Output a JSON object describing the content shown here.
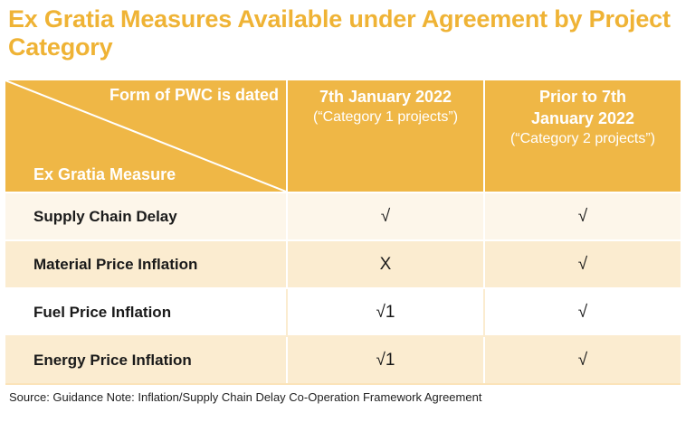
{
  "title": "Ex Gratia Measures Available under Agreement by Project Category",
  "colors": {
    "accent": "#efb335",
    "header_bg": "#efb746",
    "row_tint": "#fbecd0"
  },
  "table": {
    "corner_top_label": "Form of PWC is dated",
    "corner_bottom_label": "Ex Gratia Measure",
    "columns": [
      {
        "heading": "7th January 2022",
        "subheading": "(“Category 1 projects”)"
      },
      {
        "heading": "Prior to 7th January 2022",
        "subheading": "(“Category 2 projects”)"
      }
    ],
    "rows": [
      {
        "measure": "Supply Chain Delay",
        "cat1": "√",
        "cat2": "√"
      },
      {
        "measure": "Material Price Inflation",
        "cat1": "X",
        "cat2": "√"
      },
      {
        "measure": "Fuel Price Inflation",
        "cat1": "√1",
        "cat2": "√"
      },
      {
        "measure": "Energy Price Inflation",
        "cat1": "√1",
        "cat2": "√"
      }
    ]
  },
  "source": "Source: Guidance Note: Inflation/Supply Chain Delay Co-Operation Framework Agreement"
}
